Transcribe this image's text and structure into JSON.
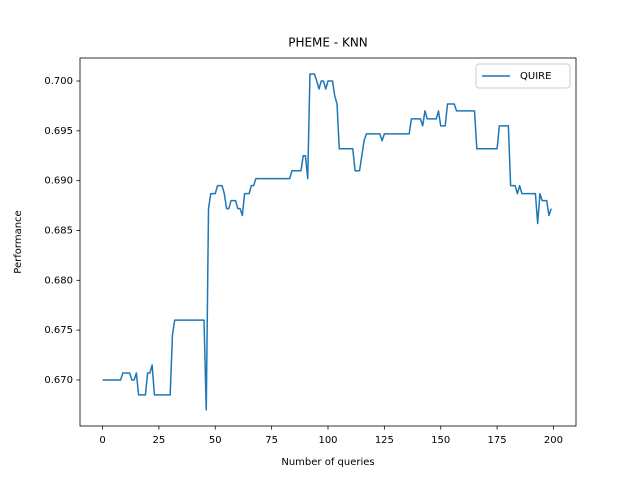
{
  "chart_data": {
    "type": "line",
    "title": "PHEME - KNN",
    "xlabel": "Number of queries",
    "ylabel": "Performance",
    "x": [
      0,
      8,
      9,
      12,
      13,
      14,
      15,
      16,
      19,
      20,
      21,
      22,
      23,
      30,
      31,
      32,
      45,
      46,
      47,
      48,
      50,
      51,
      53,
      54,
      55,
      56,
      57,
      59,
      60,
      61,
      62,
      63,
      65,
      66,
      67,
      68,
      83,
      84,
      88,
      89,
      90,
      91,
      92,
      94,
      95,
      96,
      97,
      98,
      99,
      100,
      102,
      103,
      104,
      105,
      111,
      112,
      114,
      116,
      117,
      123,
      124,
      125,
      136,
      137,
      141,
      142,
      143,
      144,
      148,
      149,
      150,
      152,
      153,
      156,
      157,
      165,
      166,
      175,
      176,
      180,
      181,
      183,
      184,
      185,
      186,
      192,
      193,
      194,
      195,
      197,
      198,
      199
    ],
    "series": [
      {
        "name": "QUIRE",
        "color": "#1f77b4",
        "values": [
          0.67,
          0.67,
          0.6707,
          0.6707,
          0.67,
          0.67,
          0.6707,
          0.6685,
          0.6685,
          0.6707,
          0.6707,
          0.6715,
          0.6685,
          0.6685,
          0.6745,
          0.676,
          0.676,
          0.667,
          0.6872,
          0.6887,
          0.6887,
          0.6895,
          0.6895,
          0.6887,
          0.6872,
          0.6872,
          0.688,
          0.688,
          0.6872,
          0.6872,
          0.6865,
          0.6887,
          0.6887,
          0.6895,
          0.6895,
          0.6902,
          0.6902,
          0.691,
          0.691,
          0.6925,
          0.6925,
          0.6902,
          0.7007,
          0.7007,
          0.7,
          0.6992,
          0.7,
          0.7,
          0.6992,
          0.7,
          0.7,
          0.6985,
          0.6977,
          0.6932,
          0.6932,
          0.691,
          0.691,
          0.694,
          0.6947,
          0.6947,
          0.694,
          0.6947,
          0.6947,
          0.6962,
          0.6962,
          0.6955,
          0.697,
          0.6962,
          0.6962,
          0.697,
          0.6955,
          0.6955,
          0.6977,
          0.6977,
          0.697,
          0.697,
          0.6932,
          0.6932,
          0.6955,
          0.6955,
          0.6895,
          0.6895,
          0.6887,
          0.6895,
          0.6887,
          0.6887,
          0.6857,
          0.6887,
          0.688,
          0.688,
          0.6865,
          0.6872
        ]
      }
    ],
    "xlim": [
      -10,
      210
    ],
    "ylim": [
      0.66538,
      0.70231
    ],
    "xticks": [
      0,
      25,
      50,
      75,
      100,
      125,
      150,
      175,
      200
    ],
    "yticks": [
      {
        "value": 0.67,
        "label": "0.670"
      },
      {
        "value": 0.675,
        "label": "0.675"
      },
      {
        "value": 0.68,
        "label": "0.680"
      },
      {
        "value": 0.685,
        "label": "0.685"
      },
      {
        "value": 0.69,
        "label": "0.690"
      },
      {
        "value": 0.695,
        "label": "0.695"
      },
      {
        "value": 0.7,
        "label": "0.700"
      }
    ],
    "grid": false,
    "legend": "upper right"
  }
}
